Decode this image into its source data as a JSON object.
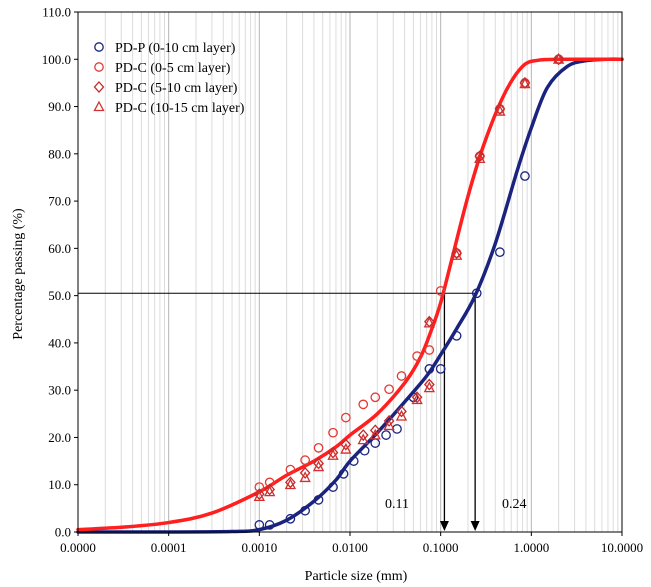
{
  "chart_data": {
    "type": "scatter",
    "xlabel": "Particle size (mm)",
    "ylabel": "Percentage passing (%)",
    "x_scale": "log",
    "xlim": [
      1e-05,
      10
    ],
    "ylim": [
      0,
      110
    ],
    "x_tick_values": [
      1e-05,
      0.0001,
      0.001,
      0.01,
      0.1,
      1,
      10
    ],
    "x_tick_labels": [
      "0.0000",
      "0.0001",
      "0.0010",
      "0.0100",
      "0.1000",
      "1.0000",
      "10.0000"
    ],
    "y_tick_values": [
      0,
      10,
      20,
      30,
      40,
      50,
      60,
      70,
      80,
      90,
      100,
      110
    ],
    "y_tick_labels": [
      "0.0",
      "10.0",
      "20.0",
      "30.0",
      "40.0",
      "50.0",
      "60.0",
      "70.0",
      "80.0",
      "90.0",
      "100.0",
      "110.0"
    ],
    "grid": "vertical minor log gridlines",
    "legend_position": "top-left",
    "series": [
      {
        "name": "PD-P (0-10 cm layer)",
        "marker": "circle",
        "color": "#1a237e",
        "x": [
          0.001,
          0.0013,
          0.0022,
          0.0032,
          0.0045,
          0.0065,
          0.0085,
          0.011,
          0.0145,
          0.019,
          0.025,
          0.033,
          0.05,
          0.075,
          0.1,
          0.15,
          0.25,
          0.45,
          0.85,
          2.0
        ],
        "y": [
          1.5,
          1.5,
          2.8,
          4.5,
          6.8,
          9.5,
          12.3,
          15,
          17.2,
          18.8,
          20.5,
          21.8,
          28.5,
          34.5,
          34.5,
          41.5,
          50.5,
          59.2,
          75.3,
          100
        ]
      },
      {
        "name": "PD-C (0-5 cm layer)",
        "marker": "circle",
        "color": "#e53935",
        "x": [
          0.001,
          0.0013,
          0.0022,
          0.0032,
          0.0045,
          0.0065,
          0.009,
          0.014,
          0.019,
          0.027,
          0.037,
          0.055,
          0.075,
          0.1,
          0.15,
          0.27,
          0.45,
          0.85,
          2.0
        ],
        "y": [
          9.5,
          10.5,
          13.2,
          15.2,
          17.8,
          21.0,
          24.2,
          27.0,
          28.5,
          30.2,
          33.0,
          37.2,
          38.5,
          51.0,
          59.0,
          79.5,
          89.5,
          95.0,
          100
        ]
      },
      {
        "name": "PD-C (5-10 cm layer)",
        "marker": "diamond",
        "color": "#c62828",
        "x": [
          0.001,
          0.0013,
          0.0022,
          0.0032,
          0.0045,
          0.0065,
          0.009,
          0.014,
          0.019,
          0.027,
          0.037,
          0.055,
          0.075,
          0.075,
          0.15,
          0.27,
          0.45,
          0.85,
          2.0
        ],
        "y": [
          8.0,
          9.0,
          10.5,
          12.5,
          14.5,
          16.8,
          18.5,
          20.5,
          21.5,
          23.5,
          25.5,
          28.5,
          31.2,
          44.5,
          59.0,
          79.5,
          89.5,
          95.0,
          100
        ]
      },
      {
        "name": "PD-C (10-15 cm layer)",
        "marker": "triangle",
        "color": "#d32f2f",
        "x": [
          0.001,
          0.0013,
          0.0022,
          0.0032,
          0.0045,
          0.0065,
          0.009,
          0.014,
          0.019,
          0.027,
          0.037,
          0.055,
          0.075,
          0.075,
          0.15,
          0.27,
          0.45,
          0.85,
          2.0
        ],
        "y": [
          7.5,
          8.5,
          10.0,
          11.5,
          13.8,
          16.2,
          17.5,
          19.5,
          20.5,
          22.5,
          24.5,
          28.0,
          30.5,
          44.2,
          58.5,
          79.0,
          89.0,
          94.8,
          100
        ]
      }
    ],
    "fit_curves": [
      {
        "color": "#1a237e",
        "x": [
          1e-05,
          0.0001,
          0.0005,
          0.001,
          0.002,
          0.004,
          0.007,
          0.01,
          0.02,
          0.04,
          0.07,
          0.1,
          0.15,
          0.24,
          0.4,
          0.7,
          1.0,
          1.5,
          2.5,
          4,
          7,
          10
        ],
        "y": [
          0,
          0,
          0.1,
          0.5,
          2.5,
          6.5,
          11,
          15,
          21,
          27.5,
          33,
          37.5,
          43,
          50,
          61,
          76.5,
          85.5,
          94,
          98.5,
          99.7,
          100,
          100
        ]
      },
      {
        "color": "#ff1f1f",
        "x": [
          1e-05,
          3e-05,
          0.0001,
          0.0003,
          0.001,
          0.002,
          0.004,
          0.007,
          0.01,
          0.02,
          0.04,
          0.06,
          0.08,
          0.1,
          0.13,
          0.2,
          0.3,
          0.5,
          0.8,
          1.2,
          2,
          3,
          10
        ],
        "y": [
          0.5,
          1,
          2,
          4,
          8.5,
          12,
          15,
          18,
          20.5,
          25,
          31.5,
          37,
          43,
          48.5,
          57,
          71,
          82,
          92.5,
          98.5,
          99.8,
          100,
          100,
          100
        ]
      }
    ],
    "annotations": [
      {
        "label": "0.11",
        "x_value": 0.11,
        "y_start": 50.5
      },
      {
        "label": "0.24",
        "x_value": 0.24,
        "y_start": 50.5
      }
    ],
    "reference_line_y": 50.5
  }
}
